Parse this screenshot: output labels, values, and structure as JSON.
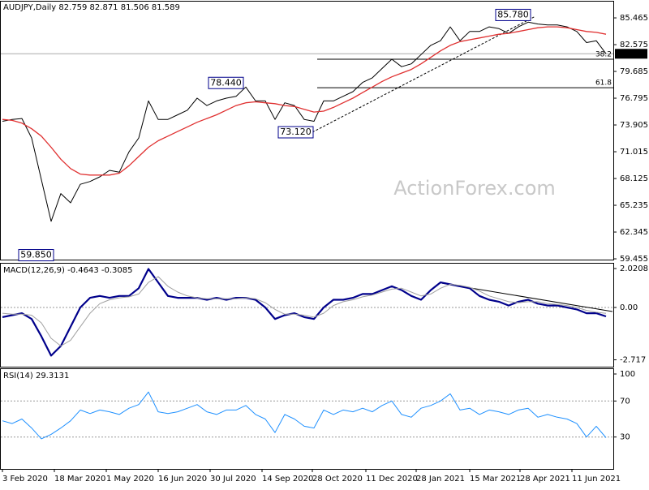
{
  "chart_data": {
    "type": "line",
    "header": "AUDJPY,Daily 82.759 82.871 81.506 81.589",
    "watermark": "ActionForex.com",
    "x": [
      0,
      6,
      12,
      18,
      24,
      30,
      36,
      42,
      48,
      54,
      60,
      66,
      72,
      78,
      84,
      90,
      96,
      102,
      108,
      114,
      120,
      126,
      132,
      138,
      144,
      150,
      156,
      162,
      168,
      174,
      180,
      186,
      192,
      198,
      204,
      210,
      216,
      222,
      228,
      234,
      240,
      246,
      252,
      258,
      264,
      270,
      276,
      282,
      288,
      294,
      300,
      306,
      312,
      318,
      324,
      330,
      336,
      342,
      348,
      354,
      360,
      366,
      372
    ],
    "xlim": [
      -1.5,
      376.5
    ],
    "xticks": [
      {
        "value": 0,
        "label": "3 Feb 2020"
      },
      {
        "value": 32,
        "label": "18 Mar 2020"
      },
      {
        "value": 64,
        "label": "1 May 2020"
      },
      {
        "value": 96,
        "label": "16 Jun 2020"
      },
      {
        "value": 128,
        "label": "30 Jul 2020"
      },
      {
        "value": 160,
        "label": "14 Sep 2020"
      },
      {
        "value": 191,
        "label": "28 Oct 2020"
      },
      {
        "value": 224,
        "label": "11 Dec 2020"
      },
      {
        "value": 255,
        "label": "28 Jan 2021"
      },
      {
        "value": 288,
        "label": "15 Mar 2021"
      },
      {
        "value": 319,
        "label": "28 Apr 2021"
      },
      {
        "value": 351,
        "label": "11 Jun 2021"
      }
    ],
    "panels": [
      {
        "ylim": [
          59.37,
          87.22
        ],
        "yticks": [
          85.465,
          82.575,
          79.685,
          76.795,
          73.905,
          71.015,
          68.125,
          65.235,
          62.345,
          59.455
        ],
        "series": [
          {
            "color": "#000000",
            "width": 1,
            "values": [
              74.3,
              74.5,
              74.6,
              72.5,
              68,
              63.5,
              66.5,
              65.5,
              67.5,
              67.8,
              68.3,
              69,
              68.8,
              71,
              72.5,
              76.5,
              74.5,
              74.5,
              75,
              75.5,
              76.8,
              76,
              76.5,
              76.8,
              77,
              78,
              76.5,
              76.5,
              74.5,
              76.3,
              76,
              74.5,
              74.3,
              76.5,
              76.5,
              77,
              77.5,
              78.5,
              79,
              80,
              81,
              80.2,
              80.5,
              81.5,
              82.5,
              83,
              84.5,
              83,
              84,
              84,
              84.5,
              84.3,
              83.8,
              84.5,
              85,
              84.8,
              84.7,
              84.7,
              84.5,
              84,
              82.8,
              83,
              81.6
            ]
          },
          {
            "color": "#e03030",
            "width": 1.3,
            "values": [
              74.5,
              74.4,
              74.1,
              73.5,
              72.7,
              71.5,
              70.2,
              69.2,
              68.6,
              68.5,
              68.5,
              68.5,
              68.7,
              69.5,
              70.5,
              71.5,
              72.2,
              72.7,
              73.2,
              73.7,
              74.2,
              74.6,
              75,
              75.5,
              76,
              76.3,
              76.4,
              76.3,
              76.2,
              76,
              75.9,
              75.6,
              75.3,
              75.4,
              75.8,
              76.3,
              76.8,
              77.4,
              78,
              78.6,
              79.1,
              79.5,
              79.9,
              80.5,
              81.2,
              81.9,
              82.5,
              82.9,
              83.1,
              83.3,
              83.5,
              83.7,
              83.8,
              84,
              84.2,
              84.4,
              84.5,
              84.5,
              84.4,
              84.2,
              84,
              83.9,
              83.7
            ]
          }
        ],
        "current": {
          "value": 81.589,
          "label": "81.589"
        },
        "annotations": [
          {
            "label": "85.780",
            "value": 85.78,
            "x": 326
          },
          {
            "label": "78.440",
            "value": 78.44,
            "x": 149
          },
          {
            "label": "73.120",
            "value": 73.12,
            "x": 192
          },
          {
            "label": "59.850",
            "value": 59.85,
            "x": 32
          }
        ],
        "fib_levels": [
          {
            "ratio": 38.2,
            "price": 81.0,
            "start": 194
          },
          {
            "ratio": 61.8,
            "price": 77.93,
            "start": 194
          }
        ],
        "trendline": {
          "x": [
            191,
            328.5
          ],
          "values": [
            73.12,
            85.64
          ]
        }
      },
      {
        "label": "MACD(12,26,9) -0.4643 -0.3085",
        "ylim": [
          -3.074,
          2.274
        ],
        "yticks": [
          2.0208,
          {
            "value": 0,
            "label": "0.00"
          },
          -2.717
        ],
        "levels": [
          0
        ],
        "series": [
          {
            "color": "#00008b",
            "width": 2.2,
            "values": [
              -0.5,
              -0.4,
              -0.3,
              -0.6,
              -1.5,
              -2.5,
              -2,
              -1,
              0,
              0.5,
              0.6,
              0.5,
              0.6,
              0.6,
              1,
              2,
              1.3,
              0.6,
              0.5,
              0.5,
              0.5,
              0.4,
              0.5,
              0.4,
              0.5,
              0.5,
              0.4,
              0,
              -0.6,
              -0.4,
              -0.3,
              -0.5,
              -0.6,
              0,
              0.4,
              0.4,
              0.5,
              0.7,
              0.7,
              0.9,
              1.1,
              0.9,
              0.6,
              0.4,
              0.9,
              1.3,
              1.2,
              1.1,
              1,
              0.6,
              0.4,
              0.3,
              0.1,
              0.3,
              0.4,
              0.2,
              0.1,
              0.1,
              0,
              -0.1,
              -0.3,
              -0.3,
              -0.4643
            ]
          },
          {
            "color": "#a0a0a0",
            "width": 1,
            "values": [
              -0.3,
              -0.35,
              -0.35,
              -0.4,
              -0.8,
              -1.6,
              -2,
              -1.7,
              -1,
              -0.3,
              0.2,
              0.4,
              0.5,
              0.55,
              0.7,
              1.3,
              1.6,
              1.1,
              0.8,
              0.6,
              0.5,
              0.45,
              0.45,
              0.45,
              0.45,
              0.5,
              0.45,
              0.25,
              -0.1,
              -0.35,
              -0.35,
              -0.4,
              -0.5,
              -0.3,
              0.1,
              0.3,
              0.4,
              0.55,
              0.65,
              0.8,
              0.95,
              1,
              0.8,
              0.6,
              0.7,
              1,
              1.2,
              1.15,
              1.05,
              0.85,
              0.6,
              0.45,
              0.3,
              0.25,
              0.3,
              0.3,
              0.2,
              0.15,
              0.1,
              0,
              -0.15,
              -0.25,
              -0.3085
            ]
          }
        ],
        "trendline": {
          "x": [
            271,
            376
          ],
          "values": [
            1.26,
            -0.21
          ]
        }
      },
      {
        "label": "RSI(14) 29.3131",
        "ylim": [
          -5.4,
          105.4
        ],
        "yticks": [
          100,
          70,
          30
        ],
        "levels": [
          70,
          30
        ],
        "series": [
          {
            "color": "#1e90ff",
            "width": 1,
            "values": [
              48,
              45,
              50,
              40,
              28,
              33,
              40,
              48,
              60,
              56,
              60,
              58,
              55,
              62,
              66,
              80,
              58,
              56,
              58,
              62,
              66,
              58,
              55,
              60,
              60,
              65,
              55,
              50,
              35,
              55,
              50,
              42,
              40,
              60,
              55,
              60,
              58,
              62,
              58,
              65,
              70,
              55,
              52,
              62,
              65,
              70,
              78,
              60,
              62,
              55,
              60,
              58,
              55,
              60,
              62,
              52,
              55,
              52,
              50,
              45,
              30,
              42,
              29.3131
            ]
          }
        ]
      }
    ]
  }
}
